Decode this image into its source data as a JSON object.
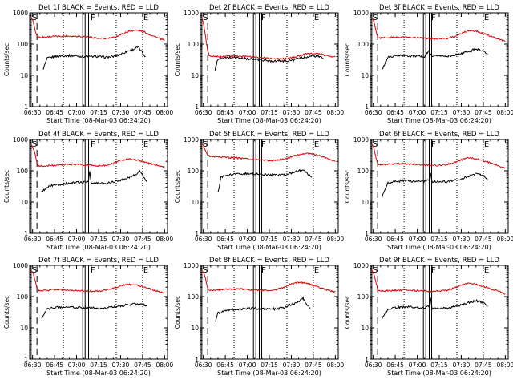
{
  "chart_data": {
    "type": "line",
    "layout": "3x3 grid",
    "xlabel": "Start Time (08-Mar-03 06:24:20)",
    "ylabel": "Counts/sec",
    "x_ticks": [
      "06:30",
      "06:45",
      "07:00",
      "07:15",
      "07:30",
      "07:45",
      "08:00"
    ],
    "xlim": [
      "06:28",
      "08:02"
    ],
    "y_scale": "log",
    "ylim": [
      1,
      1000
    ],
    "y_ticks": [
      "1",
      "10",
      "100",
      "1000"
    ],
    "grid": false,
    "colors": {
      "events": "#000000",
      "lld": "#dd0000",
      "axes": "#000000"
    },
    "markers": [
      {
        "label": "S",
        "time": "06:29",
        "style": "solid"
      },
      {
        "time": "06:33",
        "style": "dashed"
      },
      {
        "time": "06:51",
        "style": "dotted"
      },
      {
        "time": "07:05",
        "style": "solid-double"
      },
      {
        "label": "F",
        "time": "07:09",
        "style": "solid-double"
      },
      {
        "time": "07:27",
        "style": "dotted"
      },
      {
        "label": "E",
        "time": "07:45",
        "style": "dotted"
      }
    ],
    "panels": [
      {
        "title": "Det 1f BLACK = Events, RED = LLD",
        "series": [
          {
            "name": "BLACK = Events",
            "x": [
              "06:37",
              "06:40",
              "06:45",
              "06:50",
              "06:55",
              "07:00",
              "07:05",
              "07:10",
              "07:15",
              "07:20",
              "07:25",
              "07:30",
              "07:35",
              "07:38",
              "07:42",
              "07:46",
              "07:47"
            ],
            "values": [
              15,
              35,
              40,
              42,
              43,
              42,
              40,
              40,
              40,
              38,
              40,
              48,
              60,
              66,
              80,
              46,
              40
            ]
          },
          {
            "name": "RED = LLD",
            "x": [
              "06:29",
              "06:30",
              "06:31",
              "06:32",
              "06:33",
              "06:34",
              "06:35",
              "06:40",
              "06:45",
              "06:50",
              "06:55",
              "07:00",
              "07:05",
              "07:10",
              "07:15",
              "07:20",
              "07:25",
              "07:30",
              "07:35",
              "07:40",
              "07:45",
              "07:50",
              "07:55",
              "08:00"
            ],
            "values": [
              700,
              600,
              400,
              250,
              180,
              170,
              165,
              170,
              175,
              180,
              180,
              178,
              175,
              165,
              150,
              150,
              160,
              200,
              250,
              280,
              260,
              200,
              160,
              130
            ]
          }
        ]
      },
      {
        "title": "Det 2f BLACK = Events, RED = LLD",
        "series": [
          {
            "name": "BLACK = Events",
            "x": [
              "06:38",
              "06:40",
              "06:45",
              "06:50",
              "06:55",
              "07:00",
              "07:05",
              "07:10",
              "07:15",
              "07:20",
              "07:25",
              "07:30",
              "07:35",
              "07:40",
              "07:45",
              "07:50",
              "07:52"
            ],
            "values": [
              15,
              34,
              36,
              38,
              36,
              34,
              32,
              31,
              29,
              29,
              29,
              30,
              34,
              39,
              42,
              38,
              35
            ]
          },
          {
            "name": "RED = LLD",
            "x": [
              "06:29",
              "06:30",
              "06:31",
              "06:32",
              "06:33",
              "06:34",
              "06:35",
              "06:40",
              "06:45",
              "06:50",
              "06:55",
              "07:00",
              "07:05",
              "07:10",
              "07:15",
              "07:20",
              "07:25",
              "07:30",
              "07:35",
              "07:40",
              "07:45",
              "07:50",
              "07:55",
              "08:00"
            ],
            "values": [
              700,
              500,
              250,
              120,
              60,
              45,
              40,
              40,
              41,
              42,
              41,
              40,
              39,
              37,
              35,
              34,
              34,
              36,
              42,
              48,
              50,
              48,
              42,
              38
            ]
          }
        ]
      },
      {
        "title": "Det 3f BLACK = Events, RED = LLD",
        "series": [
          {
            "name": "BLACK = Events",
            "x": [
              "06:36",
              "06:40",
              "06:45",
              "06:50",
              "06:55",
              "07:00",
              "07:05",
              "07:08",
              "07:10",
              "07:15",
              "07:20",
              "07:25",
              "07:30",
              "07:35",
              "07:40",
              "07:45",
              "07:48"
            ],
            "values": [
              15,
              38,
              42,
              43,
              42,
              42,
              40,
              60,
              42,
              42,
              41,
              44,
              50,
              58,
              70,
              62,
              45
            ]
          },
          {
            "name": "RED = LLD",
            "x": [
              "06:29",
              "06:30",
              "06:31",
              "06:32",
              "06:33",
              "06:34",
              "06:35",
              "06:40",
              "06:45",
              "06:50",
              "06:55",
              "07:00",
              "07:05",
              "07:10",
              "07:15",
              "07:20",
              "07:25",
              "07:30",
              "07:35",
              "07:40",
              "07:45",
              "07:50",
              "07:55",
              "08:00"
            ],
            "values": [
              700,
              600,
              400,
              250,
              170,
              160,
              155,
              160,
              165,
              168,
              165,
              160,
              155,
              150,
              148,
              150,
              170,
              220,
              270,
              260,
              220,
              180,
              150,
              120
            ]
          }
        ]
      },
      {
        "title": "Det 4f BLACK = Events, RED = LLD",
        "series": [
          {
            "name": "BLACK = Events",
            "x": [
              "06:36",
              "06:40",
              "06:45",
              "06:50",
              "06:55",
              "07:00",
              "07:03",
              "07:08",
              "07:09",
              "07:10",
              "07:15",
              "07:20",
              "07:25",
              "07:30",
              "07:35",
              "07:40",
              "07:43",
              "07:46",
              "07:48"
            ],
            "values": [
              20,
              30,
              35,
              37,
              40,
              42,
              43,
              45,
              100,
              40,
              40,
              40,
              45,
              50,
              60,
              75,
              100,
              60,
              45
            ]
          },
          {
            "name": "RED = LLD",
            "x": [
              "06:29",
              "06:30",
              "06:31",
              "06:32",
              "06:33",
              "06:34",
              "06:35",
              "06:40",
              "06:45",
              "06:50",
              "06:55",
              "07:00",
              "07:05",
              "07:10",
              "07:15",
              "07:20",
              "07:25",
              "07:30",
              "07:35",
              "07:40",
              "07:45",
              "07:50",
              "07:55",
              "08:00"
            ],
            "values": [
              700,
              600,
              450,
              300,
              180,
              150,
              140,
              145,
              150,
              155,
              160,
              160,
              155,
              150,
              145,
              150,
              170,
              210,
              240,
              230,
              200,
              170,
              150,
              130
            ]
          }
        ]
      },
      {
        "title": "Det 5f BLACK = Events, RED = LLD",
        "series": [
          {
            "name": "BLACK = Events",
            "x": [
              "06:40",
              "06:42",
              "06:45",
              "06:50",
              "06:55",
              "07:00",
              "07:05",
              "07:10",
              "07:15",
              "07:20",
              "07:25",
              "07:30",
              "07:35",
              "07:38",
              "07:40",
              "07:44"
            ],
            "values": [
              20,
              60,
              70,
              75,
              80,
              82,
              80,
              78,
              75,
              72,
              75,
              85,
              100,
              110,
              90,
              60
            ]
          },
          {
            "name": "RED = LLD",
            "x": [
              "06:29",
              "06:30",
              "06:31",
              "06:32",
              "06:33",
              "06:34",
              "06:35",
              "06:40",
              "06:45",
              "06:50",
              "06:55",
              "07:00",
              "07:05",
              "07:10",
              "07:15",
              "07:20",
              "07:25",
              "07:30",
              "07:35",
              "07:40",
              "07:45",
              "07:50",
              "07:55",
              "08:00"
            ],
            "values": [
              700,
              650,
              500,
              400,
              320,
              300,
              290,
              280,
              270,
              260,
              250,
              240,
              230,
              220,
              210,
              215,
              240,
              280,
              330,
              360,
              340,
              290,
              240,
              200
            ]
          }
        ]
      },
      {
        "title": "Det 6f BLACK = Events, RED = LLD",
        "series": [
          {
            "name": "BLACK = Events",
            "x": [
              "06:36",
              "06:40",
              "06:45",
              "06:50",
              "06:55",
              "07:00",
              "07:05",
              "07:08",
              "07:09",
              "07:10",
              "07:15",
              "07:20",
              "07:25",
              "07:30",
              "07:35",
              "07:40",
              "07:45",
              "07:48"
            ],
            "values": [
              15,
              40,
              45,
              48,
              47,
              46,
              45,
              50,
              90,
              45,
              45,
              44,
              50,
              55,
              65,
              80,
              70,
              50
            ]
          },
          {
            "name": "RED = LLD",
            "x": [
              "06:29",
              "06:30",
              "06:31",
              "06:32",
              "06:33",
              "06:34",
              "06:35",
              "06:40",
              "06:45",
              "06:50",
              "06:55",
              "07:00",
              "07:05",
              "07:10",
              "07:15",
              "07:20",
              "07:25",
              "07:30",
              "07:35",
              "07:40",
              "07:45",
              "07:50",
              "07:55",
              "08:00"
            ],
            "values": [
              700,
              600,
              400,
              250,
              170,
              160,
              155,
              160,
              165,
              168,
              165,
              160,
              155,
              150,
              150,
              160,
              180,
              220,
              260,
              240,
              210,
              180,
              150,
              120
            ]
          }
        ]
      },
      {
        "title": "Det 7f BLACK = Events, RED = LLD",
        "series": [
          {
            "name": "BLACK = Events",
            "x": [
              "06:36",
              "06:40",
              "06:45",
              "06:50",
              "06:55",
              "07:00",
              "07:05",
              "07:10",
              "07:15",
              "07:20",
              "07:25",
              "07:30",
              "07:35",
              "07:40",
              "07:45",
              "07:48"
            ],
            "values": [
              20,
              40,
              45,
              46,
              46,
              45,
              44,
              43,
              43,
              44,
              46,
              50,
              55,
              58,
              55,
              50
            ]
          },
          {
            "name": "RED = LLD",
            "x": [
              "06:29",
              "06:30",
              "06:31",
              "06:32",
              "06:33",
              "06:34",
              "06:35",
              "06:40",
              "06:45",
              "06:50",
              "06:55",
              "07:00",
              "07:05",
              "07:10",
              "07:15",
              "07:20",
              "07:25",
              "07:30",
              "07:35",
              "07:40",
              "07:45",
              "07:50",
              "07:55",
              "08:00"
            ],
            "values": [
              700,
              600,
              450,
              300,
              180,
              160,
              155,
              160,
              165,
              165,
              160,
              155,
              150,
              148,
              150,
              160,
              185,
              220,
              250,
              240,
              210,
              175,
              150,
              130
            ]
          }
        ]
      },
      {
        "title": "Det 8f BLACK = Events, RED = LLD",
        "series": [
          {
            "name": "BLACK = Events",
            "x": [
              "06:38",
              "06:40",
              "06:45",
              "06:50",
              "06:55",
              "07:00",
              "07:05",
              "07:10",
              "07:15",
              "07:20",
              "07:25",
              "07:30",
              "07:35",
              "07:38",
              "07:40",
              "07:43"
            ],
            "values": [
              15,
              30,
              35,
              38,
              40,
              42,
              42,
              40,
              40,
              40,
              45,
              55,
              70,
              90,
              60,
              40
            ]
          },
          {
            "name": "RED = LLD",
            "x": [
              "06:29",
              "06:30",
              "06:31",
              "06:32",
              "06:33",
              "06:34",
              "06:35",
              "06:40",
              "06:45",
              "06:50",
              "06:55",
              "07:00",
              "07:05",
              "07:10",
              "07:15",
              "07:20",
              "07:25",
              "07:30",
              "07:35",
              "07:40",
              "07:45",
              "07:50",
              "07:55",
              "08:00"
            ],
            "values": [
              700,
              600,
              450,
              300,
              180,
              165,
              160,
              165,
              170,
              175,
              175,
              170,
              165,
              160,
              160,
              170,
              200,
              250,
              290,
              270,
              230,
              190,
              160,
              140
            ]
          }
        ]
      },
      {
        "title": "Det 9f BLACK = Events, RED = LLD",
        "series": [
          {
            "name": "BLACK = Events",
            "x": [
              "06:36",
              "06:40",
              "06:45",
              "06:50",
              "06:55",
              "07:00",
              "07:05",
              "07:08",
              "07:09",
              "07:10",
              "07:15",
              "07:20",
              "07:25",
              "07:30",
              "07:35",
              "07:40",
              "07:45",
              "07:48"
            ],
            "values": [
              20,
              40,
              45,
              46,
              46,
              45,
              44,
              50,
              100,
              42,
              42,
              42,
              48,
              55,
              65,
              75,
              65,
              45
            ]
          },
          {
            "name": "RED = LLD",
            "x": [
              "06:29",
              "06:30",
              "06:31",
              "06:32",
              "06:33",
              "06:34",
              "06:35",
              "06:40",
              "06:45",
              "06:50",
              "06:55",
              "07:00",
              "07:05",
              "07:10",
              "07:15",
              "07:20",
              "07:25",
              "07:30",
              "07:35",
              "07:40",
              "07:45",
              "07:50",
              "07:55",
              "08:00"
            ],
            "values": [
              700,
              600,
              420,
              270,
              170,
              155,
              150,
              155,
              160,
              162,
              160,
              155,
              150,
              148,
              150,
              160,
              185,
              230,
              270,
              250,
              210,
              175,
              150,
              120
            ]
          }
        ]
      }
    ]
  }
}
